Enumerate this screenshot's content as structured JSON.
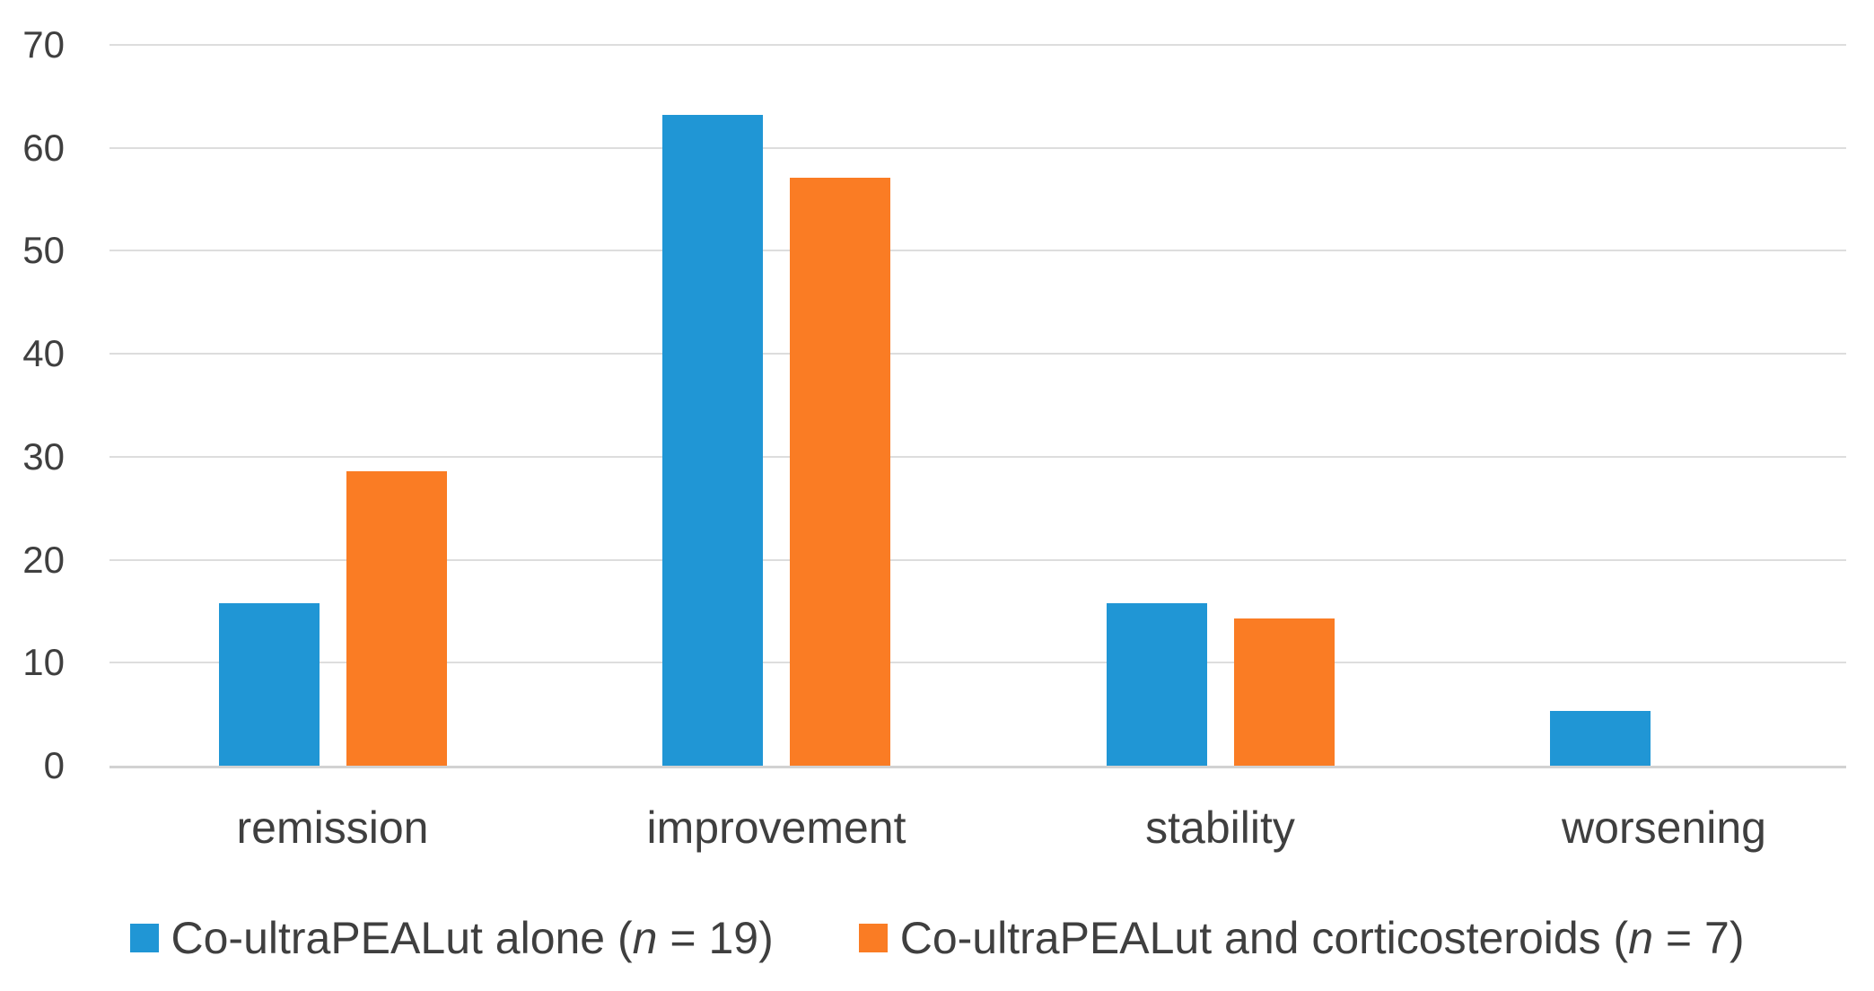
{
  "chart_data": {
    "type": "bar",
    "title": "",
    "categories": [
      "remission",
      "improvement",
      "stability",
      "worsening"
    ],
    "series": [
      {
        "name": "Co-ultraPEALut alone (n = 19)",
        "color": "#2096D5",
        "values": [
          15.8,
          63.2,
          15.8,
          5.3
        ]
      },
      {
        "name": "Co-ultraPEALut and corticosteroids (n = 7)",
        "color": "#FA7C24",
        "values": [
          28.6,
          57.1,
          14.3,
          0
        ]
      }
    ],
    "ylim": [
      0,
      70
    ],
    "yticks": [
      0,
      10,
      20,
      30,
      40,
      50,
      60,
      70
    ],
    "xlabel": "",
    "ylabel": "",
    "grid": true,
    "legend_position": "bottom"
  },
  "colors": {
    "background": "#FFFFFF",
    "gridline": "#DDDDDD",
    "baseline": "#D2D2D2",
    "text": "#3F3F3F",
    "series_blue": "#2096D5",
    "series_orange": "#FA7C24"
  }
}
